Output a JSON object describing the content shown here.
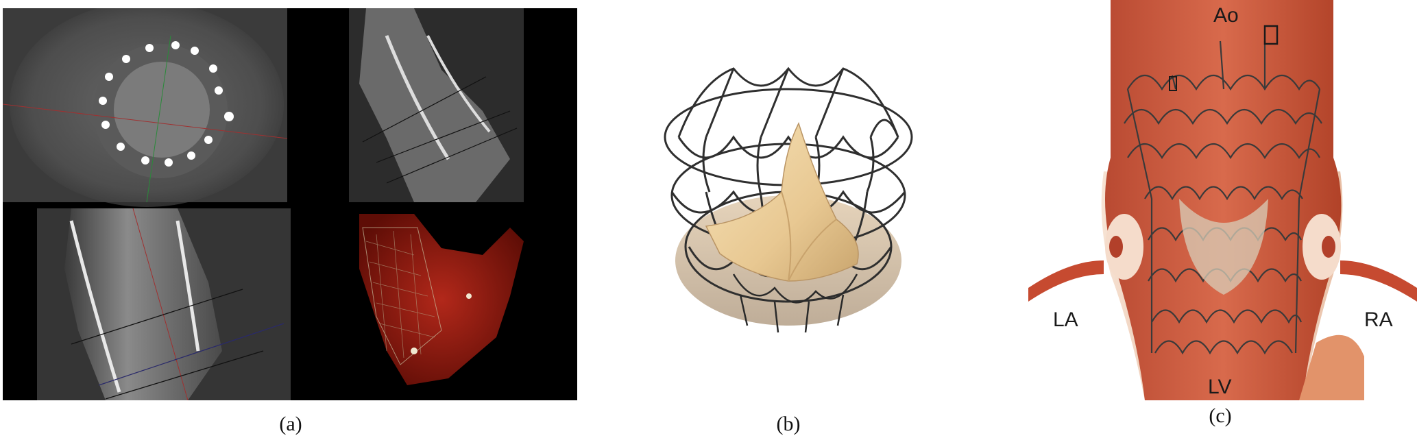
{
  "figure": {
    "panel_a": {
      "caption": "(a)"
    },
    "panel_b": {
      "caption": "(b)"
    },
    "panel_c": {
      "caption": "(c)",
      "labels": {
        "ao": "Ao",
        "la": "LA",
        "ra": "RA",
        "lv": "LV"
      }
    }
  },
  "colors": {
    "ct_background": "#000000",
    "ct_tissue": "#6e6e6e",
    "render_red": "#8e1a10",
    "stent_metal": "#3a3a3a",
    "leaflet": "#e8c892",
    "aorta_red": "#c9533a",
    "vessel_wall": "#f3d6c4"
  }
}
